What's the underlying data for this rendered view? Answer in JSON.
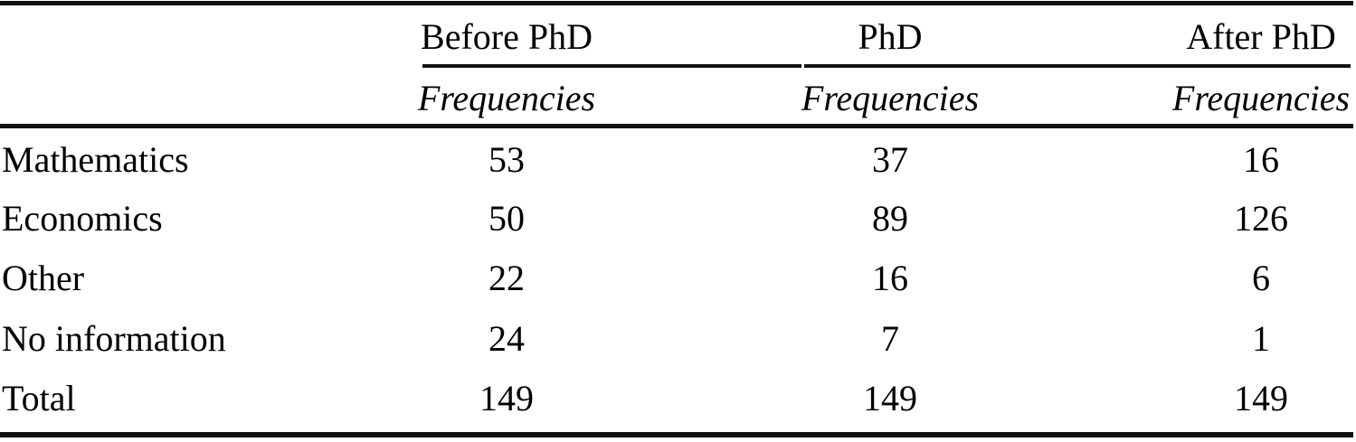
{
  "page": {
    "background_color": "#ffffff",
    "text_color": "#000000",
    "rule_color": "#111111"
  },
  "table": {
    "stub_header": "",
    "columns": [
      {
        "group_label": "Before PhD",
        "subheader": "Frequencies"
      },
      {
        "group_label": "PhD",
        "subheader": "Frequencies"
      },
      {
        "group_label": "After PhD",
        "subheader": "Frequencies"
      }
    ],
    "rows": [
      {
        "label": "Mathematics",
        "values": [
          "53",
          "37",
          "16"
        ]
      },
      {
        "label": "Economics",
        "values": [
          "50",
          "89",
          "126"
        ]
      },
      {
        "label": "Other",
        "values": [
          "22",
          "16",
          "6"
        ]
      },
      {
        "label": "No information",
        "values": [
          "24",
          "7",
          "1"
        ]
      },
      {
        "label": "Total",
        "values": [
          "149",
          "149",
          "149"
        ]
      }
    ]
  },
  "chart_data": {
    "type": "table",
    "title": "",
    "columns": [
      "",
      "Before PhD — Frequencies",
      "PhD — Frequencies",
      "After PhD — Frequencies"
    ],
    "rows": [
      [
        "Mathematics",
        53,
        37,
        16
      ],
      [
        "Economics",
        50,
        89,
        126
      ],
      [
        "Other",
        22,
        16,
        6
      ],
      [
        "No information",
        24,
        7,
        1
      ],
      [
        "Total",
        149,
        149,
        149
      ]
    ]
  }
}
